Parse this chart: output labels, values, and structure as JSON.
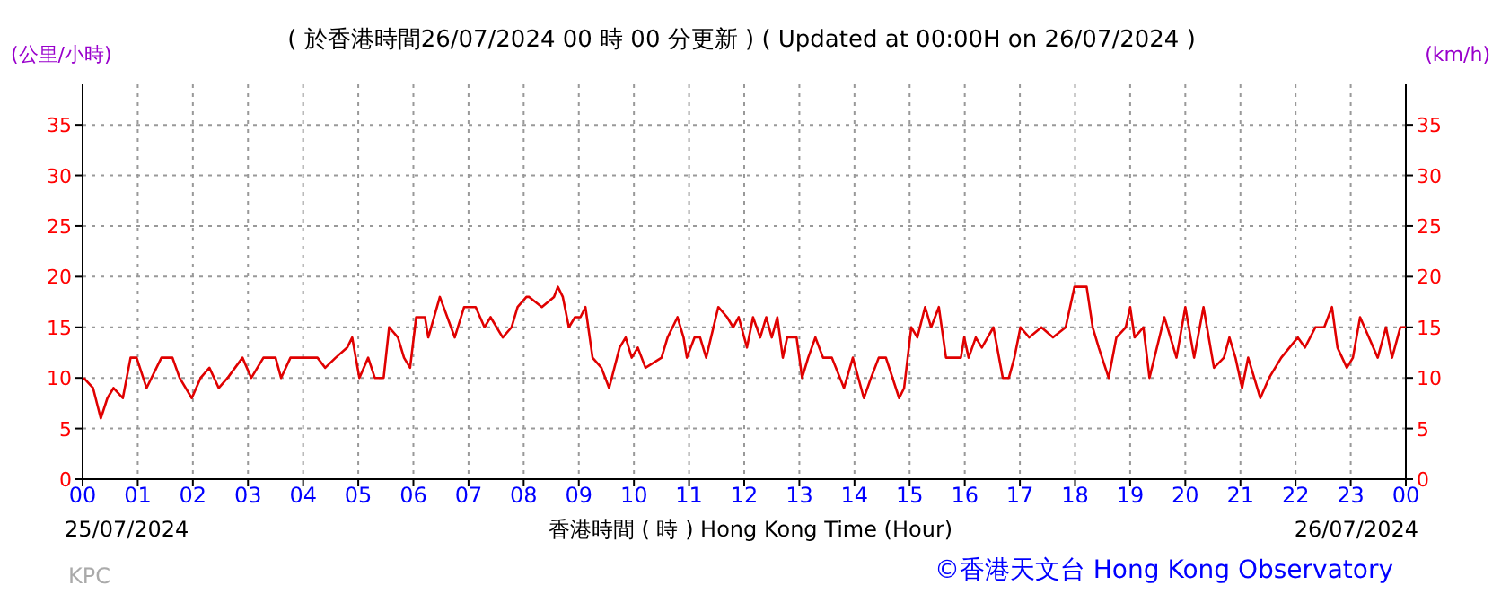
{
  "chart_data": {
    "type": "line",
    "title": "( 於香港時間26/07/2024 00 時 00 分更新 ) ( Updated at 00:00H on 26/07/2024 )",
    "xlabel": "香港時間 ( 時 )  Hong Kong Time (Hour)",
    "ylabel": "(公里/小時)",
    "y2label": "(km/h)",
    "annotations": [
      "25/07/2024",
      "26/07/2024",
      "KPC",
      "©香港天文台 Hong Kong Observatory"
    ],
    "series": [
      {
        "color": "#e00000",
        "x": [
          0.02,
          0.19,
          0.33,
          0.45,
          0.56,
          0.73,
          0.87,
          0.98,
          1.16,
          1.43,
          1.63,
          1.76,
          1.98,
          2.14,
          2.3,
          2.47,
          2.63,
          2.9,
          3.06,
          3.28,
          3.5,
          3.6,
          3.77,
          3.93,
          4.26,
          4.4,
          4.59,
          4.8,
          4.89,
          5.02,
          5.18,
          5.3,
          5.46,
          5.56,
          5.72,
          5.83,
          5.94,
          6.05,
          6.21,
          6.27,
          6.48,
          6.75,
          6.92,
          7.13,
          7.29,
          7.4,
          7.62,
          7.78,
          7.89,
          8.05,
          8.1,
          8.33,
          8.55,
          8.62,
          8.71,
          8.82,
          8.93,
          9.03,
          9.12,
          9.25,
          9.41,
          9.55,
          9.74,
          9.85,
          9.96,
          10.07,
          10.21,
          10.5,
          10.61,
          10.79,
          10.9,
          10.96,
          11.1,
          11.2,
          11.31,
          11.53,
          11.69,
          11.8,
          11.9,
          12.05,
          12.16,
          12.29,
          12.4,
          12.5,
          12.6,
          12.7,
          12.78,
          12.95,
          13.05,
          13.16,
          13.29,
          13.43,
          13.59,
          13.81,
          13.97,
          14.17,
          14.3,
          14.44,
          14.57,
          14.81,
          14.9,
          15.03,
          15.14,
          15.28,
          15.39,
          15.53,
          15.66,
          15.93,
          15.99,
          16.07,
          16.2,
          16.31,
          16.52,
          16.69,
          16.8,
          16.9,
          17.01,
          17.17,
          17.39,
          17.6,
          17.83,
          17.99,
          18.21,
          18.32,
          18.43,
          18.61,
          18.75,
          18.92,
          19.0,
          19.08,
          19.24,
          19.35,
          19.62,
          19.84,
          20.0,
          20.16,
          20.33,
          20.52,
          20.7,
          20.8,
          20.91,
          21.03,
          21.14,
          21.36,
          21.52,
          21.74,
          22.04,
          22.17,
          22.36,
          22.52,
          22.66,
          22.76,
          22.93,
          23.04,
          23.17,
          23.33,
          23.49,
          23.64,
          23.75,
          23.9,
          24.0
        ],
        "values": [
          10,
          9,
          6,
          8,
          9,
          8,
          12,
          12,
          9,
          12,
          12,
          10,
          8,
          10,
          11,
          9,
          10,
          12,
          10,
          12,
          12,
          10,
          12,
          12,
          12,
          11,
          12,
          13,
          14,
          10,
          12,
          10,
          10,
          15,
          14,
          12,
          11,
          16,
          16,
          14,
          18,
          14,
          17,
          17,
          15,
          16,
          14,
          15,
          17,
          18,
          18,
          17,
          18,
          19,
          18,
          15,
          16,
          16,
          17,
          12,
          11,
          9,
          13,
          14,
          12,
          13,
          11,
          12,
          14,
          16,
          14,
          12,
          14,
          14,
          12,
          17,
          16,
          15,
          16,
          13,
          16,
          14,
          16,
          14,
          16,
          12,
          14,
          14,
          10,
          12,
          14,
          12,
          12,
          9,
          12,
          8,
          10,
          12,
          12,
          8,
          9,
          15,
          14,
          17,
          15,
          17,
          12,
          12,
          14,
          12,
          14,
          13,
          15,
          10,
          10,
          12,
          15,
          14,
          15,
          14,
          15,
          19,
          19,
          15,
          13,
          10,
          14,
          15,
          17,
          14,
          15,
          10,
          16,
          12,
          17,
          12,
          17,
          11,
          12,
          14,
          12,
          9,
          12,
          8,
          10,
          12,
          14,
          13,
          15,
          15,
          17,
          13,
          11,
          12,
          16,
          14,
          12,
          15,
          12,
          15,
          15
        ]
      }
    ],
    "xlim": [
      0,
      24
    ],
    "xticks": [
      {
        "value": 0,
        "label": "00"
      },
      {
        "value": 1,
        "label": "01"
      },
      {
        "value": 2,
        "label": "02"
      },
      {
        "value": 3,
        "label": "03"
      },
      {
        "value": 4,
        "label": "04"
      },
      {
        "value": 5,
        "label": "05"
      },
      {
        "value": 6,
        "label": "06"
      },
      {
        "value": 7,
        "label": "07"
      },
      {
        "value": 8,
        "label": "08"
      },
      {
        "value": 9,
        "label": "09"
      },
      {
        "value": 10,
        "label": "10"
      },
      {
        "value": 11,
        "label": "11"
      },
      {
        "value": 12,
        "label": "12"
      },
      {
        "value": 13,
        "label": "13"
      },
      {
        "value": 14,
        "label": "14"
      },
      {
        "value": 15,
        "label": "15"
      },
      {
        "value": 16,
        "label": "16"
      },
      {
        "value": 17,
        "label": "17"
      },
      {
        "value": 18,
        "label": "18"
      },
      {
        "value": 19,
        "label": "19"
      },
      {
        "value": 20,
        "label": "20"
      },
      {
        "value": 21,
        "label": "21"
      },
      {
        "value": 22,
        "label": "22"
      },
      {
        "value": 23,
        "label": "23"
      },
      {
        "value": 24,
        "label": "00"
      }
    ],
    "ylim": [
      0,
      39
    ],
    "yticks": [
      0,
      5,
      10,
      15,
      20,
      25,
      30,
      35
    ],
    "y2lim": [
      0,
      39
    ],
    "y2ticks": [
      0,
      5,
      10,
      15,
      20,
      25,
      30,
      35
    ],
    "grid": true
  }
}
